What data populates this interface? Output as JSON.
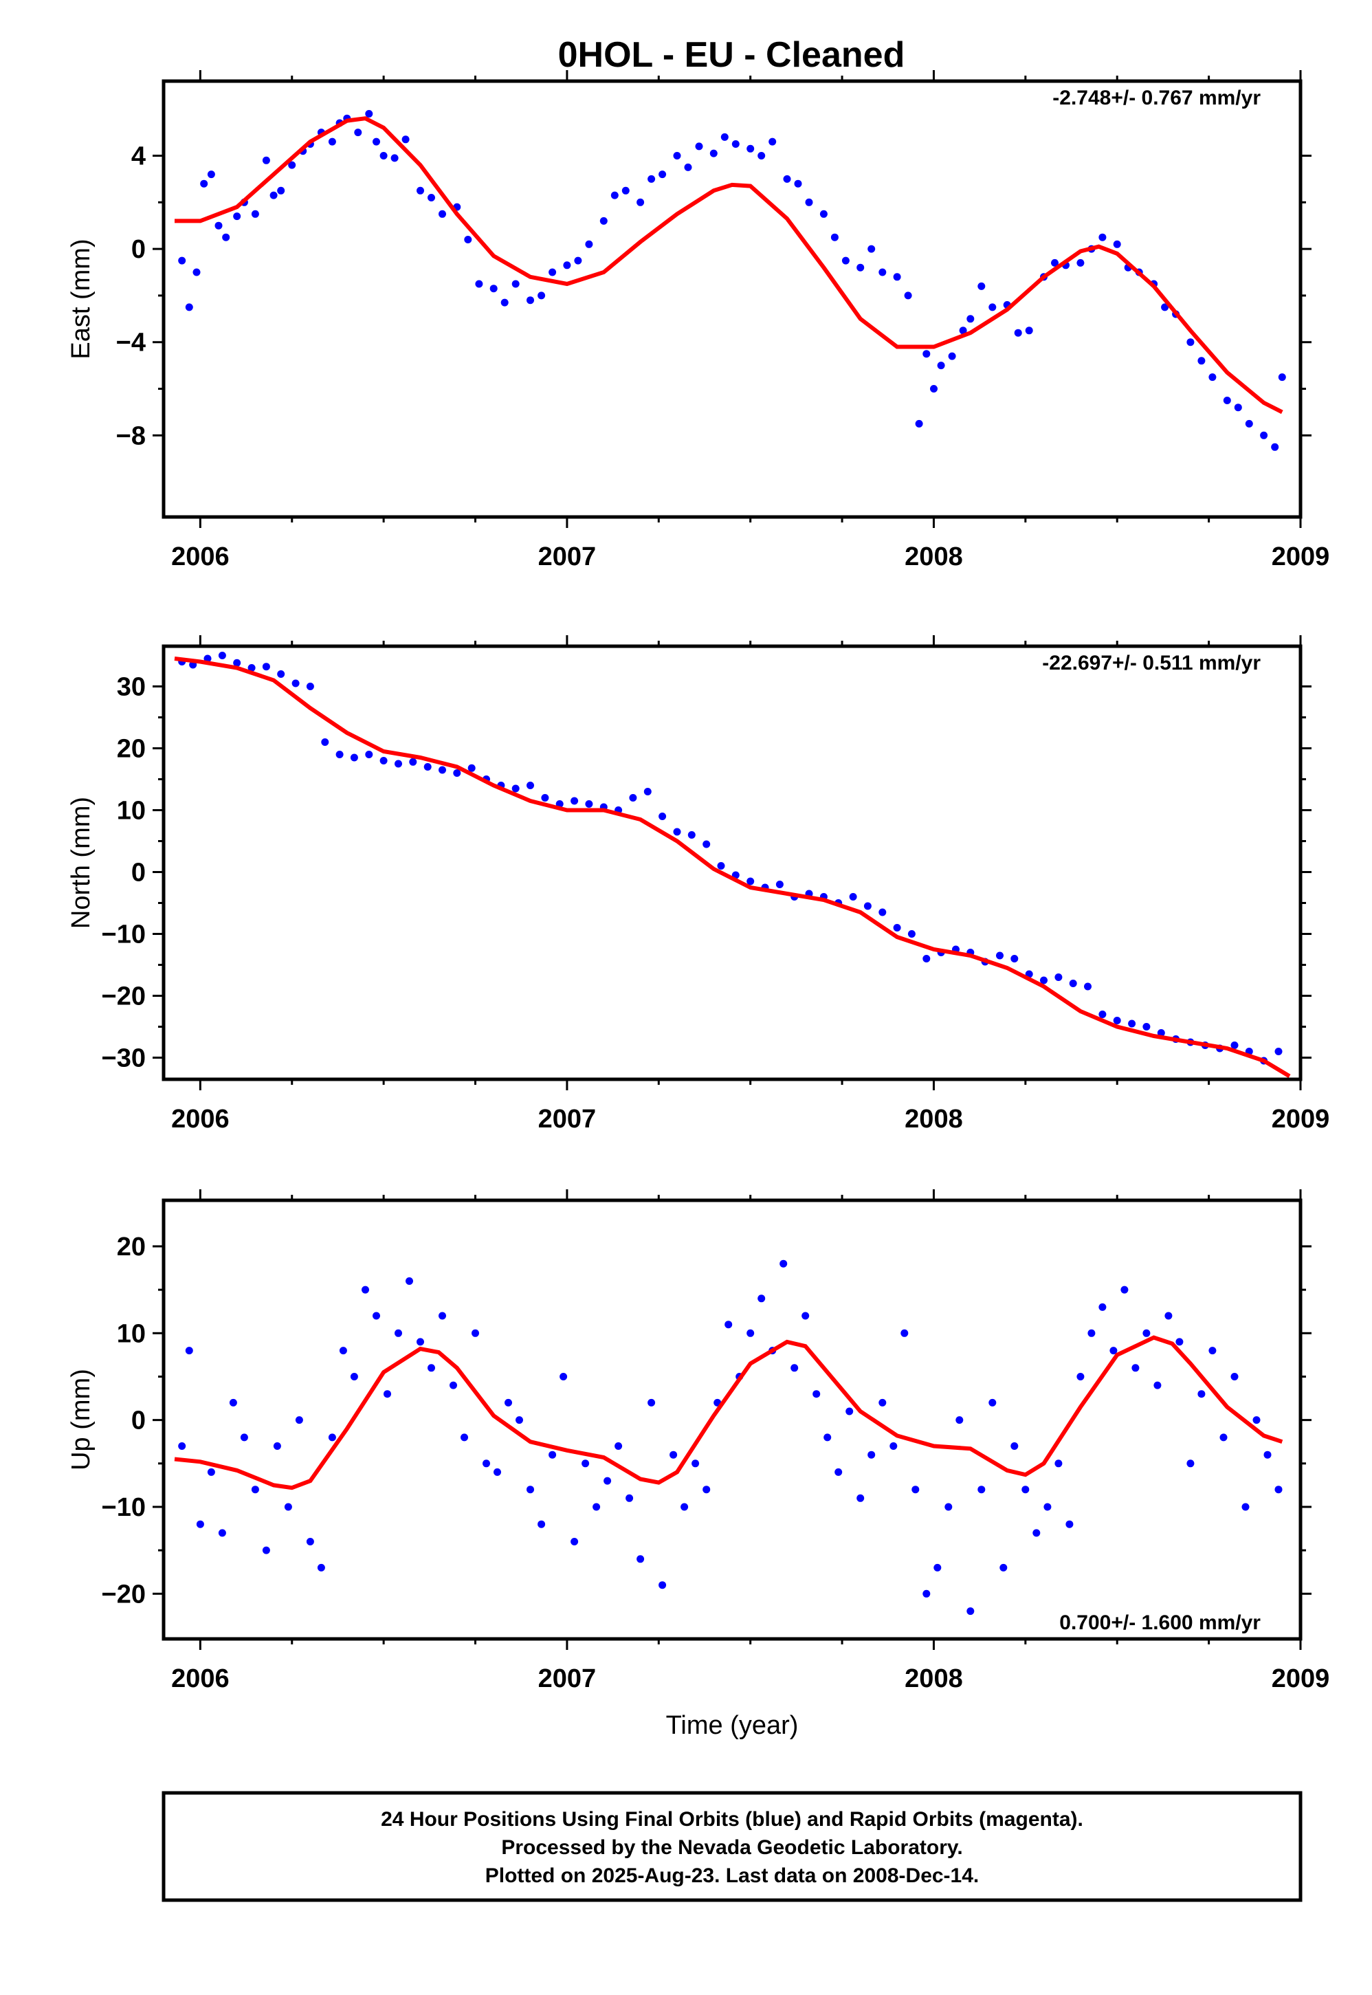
{
  "title": "0HOL  - EU - Cleaned",
  "colors": {
    "points": "#0000ff",
    "fit": "#ff0000",
    "frame": "#000000"
  },
  "footer": [
    "24 Hour Positions Using Final Orbits (blue) and Rapid Orbits (magenta).",
    "Processed by the Nevada Geodetic Laboratory.",
    "Plotted on 2025-Aug-23. Last data on 2008-Dec-14."
  ],
  "chart_data": [
    {
      "type": "scatter",
      "name": "east",
      "ylabel": "East (mm)",
      "xlabel": "",
      "xlim": [
        2005.9,
        2009.0
      ],
      "ylim": [
        -11.5,
        7.2
      ],
      "xticks": [
        2006,
        2007,
        2008,
        2009
      ],
      "yticks": [
        4,
        0,
        -4,
        -8
      ],
      "ytick_labels": [
        "4",
        "0",
        "−4",
        "−8"
      ],
      "rate_label": "-2.748+/- 0.767 mm/yr",
      "rate_position": "top-right",
      "grid": false,
      "fit": {
        "x": [
          2005.93,
          2006.0,
          2006.1,
          2006.2,
          2006.3,
          2006.4,
          2006.45,
          2006.5,
          2006.6,
          2006.7,
          2006.8,
          2006.9,
          2007.0,
          2007.1,
          2007.2,
          2007.3,
          2007.4,
          2007.45,
          2007.5,
          2007.6,
          2007.7,
          2007.8,
          2007.9,
          2008.0,
          2008.1,
          2008.2,
          2008.3,
          2008.4,
          2008.45,
          2008.5,
          2008.6,
          2008.7,
          2008.8,
          2008.9,
          2008.95
        ],
        "y": [
          1.2,
          1.2,
          1.8,
          3.2,
          4.6,
          5.5,
          5.6,
          5.2,
          3.6,
          1.5,
          -0.3,
          -1.2,
          -1.5,
          -1.0,
          0.3,
          1.5,
          2.5,
          2.75,
          2.7,
          1.3,
          -0.8,
          -3.0,
          -4.2,
          -4.2,
          -3.6,
          -2.6,
          -1.2,
          -0.1,
          0.1,
          -0.2,
          -1.6,
          -3.5,
          -5.3,
          -6.6,
          -7.0
        ]
      },
      "points": {
        "x": [
          2005.95,
          2005.97,
          2005.99,
          2006.01,
          2006.03,
          2006.05,
          2006.07,
          2006.1,
          2006.12,
          2006.15,
          2006.18,
          2006.2,
          2006.22,
          2006.25,
          2006.28,
          2006.3,
          2006.33,
          2006.36,
          2006.38,
          2006.4,
          2006.43,
          2006.46,
          2006.48,
          2006.5,
          2006.53,
          2006.56,
          2006.6,
          2006.63,
          2006.66,
          2006.7,
          2006.73,
          2006.76,
          2006.8,
          2006.83,
          2006.86,
          2006.9,
          2006.93,
          2006.96,
          2007.0,
          2007.03,
          2007.06,
          2007.1,
          2007.13,
          2007.16,
          2007.2,
          2007.23,
          2007.26,
          2007.3,
          2007.33,
          2007.36,
          2007.4,
          2007.43,
          2007.46,
          2007.5,
          2007.53,
          2007.56,
          2007.6,
          2007.63,
          2007.66,
          2007.7,
          2007.73,
          2007.76,
          2007.8,
          2007.83,
          2007.86,
          2007.9,
          2007.93,
          2007.96,
          2007.98,
          2008.0,
          2008.02,
          2008.05,
          2008.08,
          2008.1,
          2008.13,
          2008.16,
          2008.2,
          2008.23,
          2008.26,
          2008.3,
          2008.33,
          2008.36,
          2008.4,
          2008.43,
          2008.46,
          2008.5,
          2008.53,
          2008.56,
          2008.6,
          2008.63,
          2008.66,
          2008.7,
          2008.73,
          2008.76,
          2008.8,
          2008.83,
          2008.86,
          2008.9,
          2008.93,
          2008.95
        ],
        "y": [
          -0.5,
          -2.5,
          -1.0,
          2.8,
          3.2,
          1.0,
          0.5,
          1.4,
          2.0,
          1.5,
          3.8,
          2.3,
          2.5,
          3.6,
          4.2,
          4.5,
          5.0,
          4.6,
          5.4,
          5.6,
          5.0,
          5.8,
          4.6,
          4.0,
          3.9,
          4.7,
          2.5,
          2.2,
          1.5,
          1.8,
          0.4,
          -1.5,
          -1.7,
          -2.3,
          -1.5,
          -2.2,
          -2.0,
          -1.0,
          -0.7,
          -0.5,
          0.2,
          1.2,
          2.3,
          2.5,
          2.0,
          3.0,
          3.2,
          4.0,
          3.5,
          4.4,
          4.1,
          4.8,
          4.5,
          4.3,
          4.0,
          4.6,
          3.0,
          2.8,
          2.0,
          1.5,
          0.5,
          -0.5,
          -0.8,
          0.0,
          -1.0,
          -1.2,
          -2.0,
          -7.5,
          -4.5,
          -6.0,
          -5.0,
          -4.6,
          -3.5,
          -3.0,
          -1.6,
          -2.5,
          -2.4,
          -3.6,
          -3.5,
          -1.2,
          -0.6,
          -0.7,
          -0.6,
          0.0,
          0.5,
          0.2,
          -0.8,
          -1.0,
          -1.5,
          -2.5,
          -2.8,
          -4.0,
          -4.8,
          -5.5,
          -6.5,
          -6.8,
          -7.5,
          -8.0,
          -8.5,
          -5.5
        ]
      }
    },
    {
      "type": "scatter",
      "name": "north",
      "ylabel": "North (mm)",
      "xlabel": "",
      "xlim": [
        2005.9,
        2009.0
      ],
      "ylim": [
        -33.5,
        36.5
      ],
      "xticks": [
        2006,
        2007,
        2008,
        2009
      ],
      "yticks": [
        30,
        20,
        10,
        0,
        -10,
        -20,
        -30
      ],
      "ytick_labels": [
        "30",
        "20",
        "10",
        "0",
        "−10",
        "−20",
        "−30"
      ],
      "rate_label": "-22.697+/- 0.511 mm/yr",
      "rate_position": "top-right",
      "grid": false,
      "fit": {
        "x": [
          2005.93,
          2006.0,
          2006.1,
          2006.2,
          2006.3,
          2006.4,
          2006.5,
          2006.6,
          2006.7,
          2006.8,
          2006.9,
          2007.0,
          2007.1,
          2007.2,
          2007.3,
          2007.4,
          2007.5,
          2007.6,
          2007.7,
          2007.8,
          2007.9,
          2008.0,
          2008.1,
          2008.2,
          2008.3,
          2008.4,
          2008.5,
          2008.6,
          2008.7,
          2008.8,
          2008.9,
          2008.97
        ],
        "y": [
          34.5,
          34.0,
          33.0,
          31.0,
          26.5,
          22.5,
          19.5,
          18.5,
          17.0,
          14.0,
          11.5,
          10.0,
          10.0,
          8.5,
          5.0,
          0.5,
          -2.5,
          -3.5,
          -4.5,
          -6.5,
          -10.5,
          -12.5,
          -13.5,
          -15.5,
          -18.5,
          -22.5,
          -25.0,
          -26.5,
          -27.5,
          -28.5,
          -30.5,
          -33.0
        ]
      },
      "points": {
        "x": [
          2005.95,
          2005.98,
          2006.02,
          2006.06,
          2006.1,
          2006.14,
          2006.18,
          2006.22,
          2006.26,
          2006.3,
          2006.34,
          2006.38,
          2006.42,
          2006.46,
          2006.5,
          2006.54,
          2006.58,
          2006.62,
          2006.66,
          2006.7,
          2006.74,
          2006.78,
          2006.82,
          2006.86,
          2006.9,
          2006.94,
          2006.98,
          2007.02,
          2007.06,
          2007.1,
          2007.14,
          2007.18,
          2007.22,
          2007.26,
          2007.3,
          2007.34,
          2007.38,
          2007.42,
          2007.46,
          2007.5,
          2007.54,
          2007.58,
          2007.62,
          2007.66,
          2007.7,
          2007.74,
          2007.78,
          2007.82,
          2007.86,
          2007.9,
          2007.94,
          2007.98,
          2008.02,
          2008.06,
          2008.1,
          2008.14,
          2008.18,
          2008.22,
          2008.26,
          2008.3,
          2008.34,
          2008.38,
          2008.42,
          2008.46,
          2008.5,
          2008.54,
          2008.58,
          2008.62,
          2008.66,
          2008.7,
          2008.74,
          2008.78,
          2008.82,
          2008.86,
          2008.9,
          2008.94
        ],
        "y": [
          34.0,
          33.5,
          34.5,
          35.0,
          33.8,
          33.0,
          33.2,
          32.0,
          30.5,
          30.0,
          21.0,
          19.0,
          18.5,
          19.0,
          18.0,
          17.5,
          17.8,
          17.0,
          16.5,
          16.0,
          16.8,
          15.0,
          14.0,
          13.5,
          14.0,
          12.0,
          11.0,
          11.5,
          11.0,
          10.5,
          10.0,
          12.0,
          13.0,
          9.0,
          6.5,
          6.0,
          4.5,
          1.0,
          -0.5,
          -1.5,
          -2.5,
          -2.0,
          -4.0,
          -3.5,
          -4.0,
          -5.0,
          -4.0,
          -5.5,
          -6.5,
          -9.0,
          -10.0,
          -14.0,
          -13.0,
          -12.5,
          -13.0,
          -14.5,
          -13.5,
          -14.0,
          -16.5,
          -17.5,
          -17.0,
          -18.0,
          -18.5,
          -23.0,
          -24.0,
          -24.5,
          -25.0,
          -26.0,
          -27.0,
          -27.5,
          -28.0,
          -28.5,
          -28.0,
          -29.0,
          -30.5,
          -29.0
        ]
      }
    },
    {
      "type": "scatter",
      "name": "up",
      "ylabel": "Up (mm)",
      "xlabel": "Time (year)",
      "xlim": [
        2005.9,
        2009.0
      ],
      "ylim": [
        -25.2,
        25.3
      ],
      "xticks": [
        2006,
        2007,
        2008,
        2009
      ],
      "yticks": [
        20,
        10,
        0,
        -10,
        -20
      ],
      "ytick_labels": [
        "20",
        "10",
        "0",
        "−10",
        "−20"
      ],
      "rate_label": "0.700+/- 1.600 mm/yr",
      "rate_position": "bottom-right",
      "grid": false,
      "fit": {
        "x": [
          2005.93,
          2006.0,
          2006.1,
          2006.2,
          2006.25,
          2006.3,
          2006.4,
          2006.5,
          2006.6,
          2006.65,
          2006.7,
          2006.8,
          2006.9,
          2007.0,
          2007.1,
          2007.2,
          2007.25,
          2007.3,
          2007.4,
          2007.5,
          2007.6,
          2007.65,
          2007.7,
          2007.8,
          2007.9,
          2008.0,
          2008.1,
          2008.2,
          2008.25,
          2008.3,
          2008.4,
          2008.5,
          2008.6,
          2008.65,
          2008.7,
          2008.8,
          2008.9,
          2008.95
        ],
        "y": [
          -4.5,
          -4.8,
          -5.8,
          -7.5,
          -7.8,
          -7.0,
          -1.0,
          5.5,
          8.2,
          7.8,
          6.0,
          0.5,
          -2.5,
          -3.5,
          -4.3,
          -6.8,
          -7.2,
          -6.0,
          0.5,
          6.5,
          9.0,
          8.5,
          6.0,
          1.0,
          -1.8,
          -3.0,
          -3.3,
          -5.8,
          -6.3,
          -5.0,
          1.5,
          7.5,
          9.5,
          8.8,
          6.5,
          1.5,
          -1.8,
          -2.5
        ]
      },
      "points": {
        "x": [
          2005.95,
          2005.97,
          2006.0,
          2006.03,
          2006.06,
          2006.09,
          2006.12,
          2006.15,
          2006.18,
          2006.21,
          2006.24,
          2006.27,
          2006.3,
          2006.33,
          2006.36,
          2006.39,
          2006.42,
          2006.45,
          2006.48,
          2006.51,
          2006.54,
          2006.57,
          2006.6,
          2006.63,
          2006.66,
          2006.69,
          2006.72,
          2006.75,
          2006.78,
          2006.81,
          2006.84,
          2006.87,
          2006.9,
          2006.93,
          2006.96,
          2006.99,
          2007.02,
          2007.05,
          2007.08,
          2007.11,
          2007.14,
          2007.17,
          2007.2,
          2007.23,
          2007.26,
          2007.29,
          2007.32,
          2007.35,
          2007.38,
          2007.41,
          2007.44,
          2007.47,
          2007.5,
          2007.53,
          2007.56,
          2007.59,
          2007.62,
          2007.65,
          2007.68,
          2007.71,
          2007.74,
          2007.77,
          2007.8,
          2007.83,
          2007.86,
          2007.89,
          2007.92,
          2007.95,
          2007.98,
          2008.01,
          2008.04,
          2008.07,
          2008.1,
          2008.13,
          2008.16,
          2008.19,
          2008.22,
          2008.25,
          2008.28,
          2008.31,
          2008.34,
          2008.37,
          2008.4,
          2008.43,
          2008.46,
          2008.49,
          2008.52,
          2008.55,
          2008.58,
          2008.61,
          2008.64,
          2008.67,
          2008.7,
          2008.73,
          2008.76,
          2008.79,
          2008.82,
          2008.85,
          2008.88,
          2008.91,
          2008.94
        ],
        "y": [
          -3,
          8,
          -12,
          -6,
          -13,
          2,
          -2,
          -8,
          -15,
          -3,
          -10,
          0,
          -14,
          -17,
          -2,
          8,
          5,
          15,
          12,
          3,
          10,
          16,
          9,
          6,
          12,
          4,
          -2,
          10,
          -5,
          -6,
          2,
          0,
          -8,
          -12,
          -4,
          5,
          -14,
          -5,
          -10,
          -7,
          -3,
          -9,
          -16,
          2,
          -19,
          -4,
          -10,
          -5,
          -8,
          2,
          11,
          5,
          10,
          14,
          8,
          18,
          6,
          12,
          3,
          -2,
          -6,
          1,
          -9,
          -4,
          2,
          -3,
          10,
          -8,
          -20,
          -17,
          -10,
          0,
          -22,
          -8,
          2,
          -17,
          -3,
          -8,
          -13,
          -10,
          -5,
          -12,
          5,
          10,
          13,
          8,
          15,
          6,
          10,
          4,
          12,
          9,
          -5,
          3,
          8,
          -2,
          5,
          -10,
          0,
          -4,
          -8
        ]
      }
    }
  ]
}
